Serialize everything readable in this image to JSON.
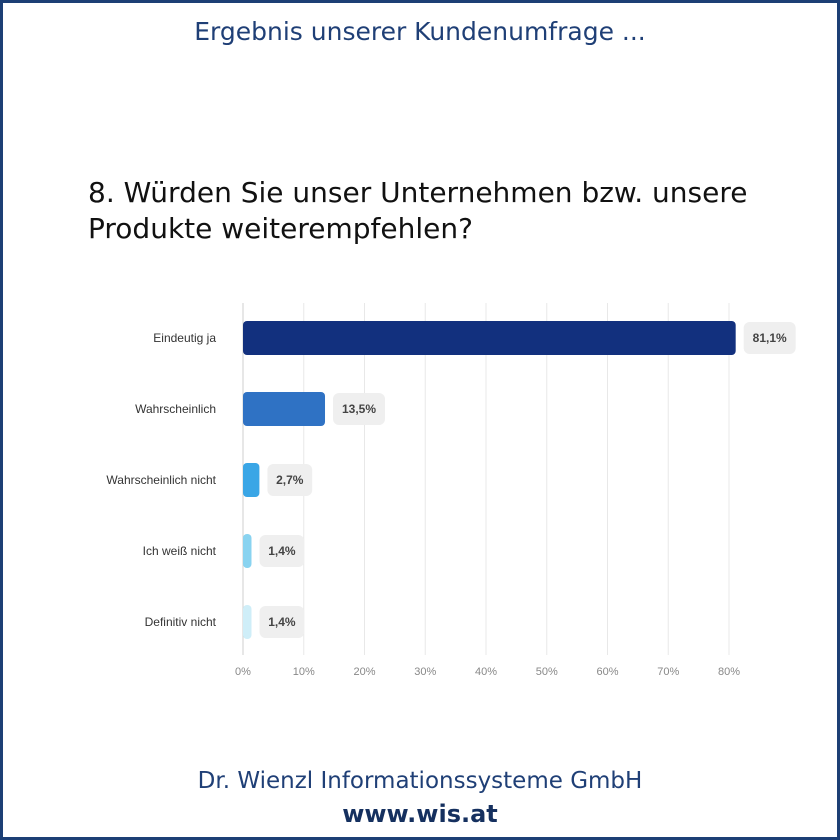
{
  "header": {
    "title": "Ergebnis unserer Kundenumfrage ..."
  },
  "question": {
    "line1": "8. Würden Sie unser Unternehmen bzw. unsere",
    "line2": "Produkte weiterempfehlen?"
  },
  "chart_data": {
    "type": "bar",
    "orientation": "horizontal",
    "categories": [
      "Eindeutig ja",
      "Wahrscheinlich",
      "Wahrscheinlich nicht",
      "Ich weiß nicht",
      "Definitiv nicht"
    ],
    "values": [
      81.1,
      13.5,
      2.7,
      1.4,
      1.4
    ],
    "value_labels": [
      "81,1%",
      "13,5%",
      "2,7%",
      "1,4%",
      "1,4%"
    ],
    "bar_colors": [
      "#12307e",
      "#2f72c4",
      "#3aa6e6",
      "#89d3f0",
      "#cfeef8"
    ],
    "x_ticks": [
      0,
      10,
      20,
      30,
      40,
      50,
      60,
      70,
      80
    ],
    "x_tick_labels": [
      "0%",
      "10%",
      "20%",
      "30%",
      "40%",
      "50%",
      "60%",
      "70%",
      "80%"
    ],
    "xlim": [
      0,
      80
    ],
    "grid": true,
    "legend": "none"
  },
  "footer": {
    "company": "Dr. Wienzl Informationssysteme GmbH",
    "url": "www.wis.at"
  }
}
